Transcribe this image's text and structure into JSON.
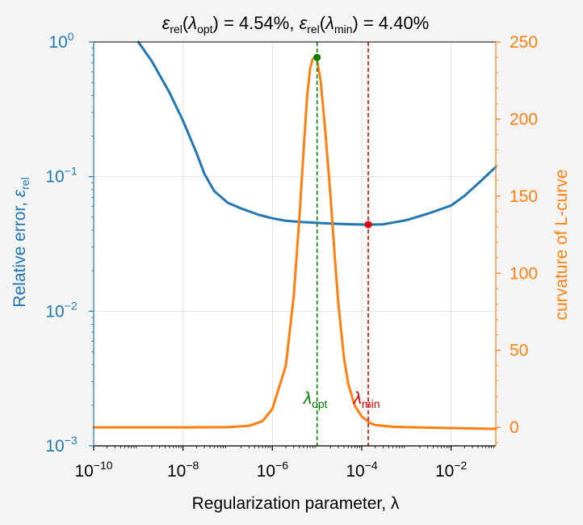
{
  "chart_data": {
    "type": "line",
    "title": {
      "eps_sym": "ε",
      "rel_sub": "rel",
      "lambda_sym": "λ",
      "opt_sub": "opt",
      "min_sub": "min",
      "open_paren": "(",
      "close_paren": ")",
      "eq_opt": " = 4.54%, ",
      "eq_min": " = 4.40%"
    },
    "xlabel": "Regularization parameter, λ",
    "ylabel_left": {
      "text": "Relative error, ",
      "sym": "ε",
      "sub": "rel"
    },
    "ylabel_right": "curvature of L-curve",
    "x_scale": "log",
    "y_left_scale": "log",
    "xlim": [
      1e-10,
      0.1
    ],
    "ylim_left": [
      0.001,
      1
    ],
    "ylim_right": [
      -12,
      250
    ],
    "grid": true,
    "x_ticks": [
      {
        "value": 1e-10,
        "base": "10",
        "exp": "−10"
      },
      {
        "value": 1e-08,
        "base": "10",
        "exp": "−8"
      },
      {
        "value": 1e-06,
        "base": "10",
        "exp": "−6"
      },
      {
        "value": 0.0001,
        "base": "10",
        "exp": "−4"
      },
      {
        "value": 0.01,
        "base": "10",
        "exp": "−2"
      }
    ],
    "y_left_ticks": [
      {
        "value": 1,
        "base": "10",
        "exp": "0"
      },
      {
        "value": 0.1,
        "base": "10",
        "exp": "−1"
      },
      {
        "value": 0.01,
        "base": "10",
        "exp": "−2"
      },
      {
        "value": 0.001,
        "base": "10",
        "exp": "−3"
      }
    ],
    "y_right_ticks": [
      {
        "value": 0,
        "label": "0"
      },
      {
        "value": 50,
        "label": "50"
      },
      {
        "value": 100,
        "label": "100"
      },
      {
        "value": 150,
        "label": "150"
      },
      {
        "value": 200,
        "label": "200"
      },
      {
        "value": 250,
        "label": "250"
      }
    ],
    "series": [
      {
        "axis": "left",
        "color": "#1f77b4",
        "points": [
          [
            1e-09,
            1.0
          ],
          [
            2e-09,
            0.72
          ],
          [
            5e-09,
            0.42
          ],
          [
            1e-08,
            0.26
          ],
          [
            2e-08,
            0.15
          ],
          [
            3e-08,
            0.105
          ],
          [
            5e-08,
            0.078
          ],
          [
            1e-07,
            0.064
          ],
          [
            2e-07,
            0.058
          ],
          [
            5e-07,
            0.052
          ],
          [
            1e-06,
            0.049
          ],
          [
            2e-06,
            0.047
          ],
          [
            5e-06,
            0.0459
          ],
          [
            1e-05,
            0.0454
          ],
          [
            2e-05,
            0.0448
          ],
          [
            5e-05,
            0.0443
          ],
          [
            0.00014,
            0.044
          ],
          [
            0.0003,
            0.0442
          ],
          [
            0.001,
            0.0475
          ],
          [
            0.003,
            0.053
          ],
          [
            0.01,
            0.061
          ],
          [
            0.02,
            0.072
          ],
          [
            0.05,
            0.095
          ],
          [
            0.1,
            0.118
          ]
        ]
      },
      {
        "axis": "right",
        "color": "#ff7f0e",
        "points": [
          [
            1e-10,
            0
          ],
          [
            1e-08,
            0
          ],
          [
            1e-07,
            0.1
          ],
          [
            3e-07,
            1
          ],
          [
            6e-07,
            4
          ],
          [
            1e-06,
            12
          ],
          [
            2e-06,
            40
          ],
          [
            3e-06,
            85
          ],
          [
            4e-06,
            135
          ],
          [
            5e-06,
            180
          ],
          [
            6e-06,
            215
          ],
          [
            7e-06,
            233
          ],
          [
            8e-06,
            239
          ],
          [
            9e-06,
            240
          ],
          [
            1e-05,
            238
          ],
          [
            1.2e-05,
            225
          ],
          [
            1.5e-05,
            195
          ],
          [
            2e-05,
            150
          ],
          [
            2.5e-05,
            110
          ],
          [
            3e-05,
            80
          ],
          [
            4e-05,
            45
          ],
          [
            5e-05,
            28
          ],
          [
            7e-05,
            14
          ],
          [
            0.0001,
            7
          ],
          [
            0.00015,
            3
          ],
          [
            0.0002,
            1.5
          ],
          [
            0.0005,
            0.4
          ],
          [
            0.001,
            0.1
          ],
          [
            0.1,
            -1
          ]
        ]
      }
    ],
    "markers": [
      {
        "x": 1e-05,
        "y": 240,
        "axis": "right",
        "color": "#008000"
      },
      {
        "x": 0.00014,
        "y": 0.044,
        "axis": "left",
        "color": "#e00000"
      }
    ],
    "vlines": [
      {
        "x": 1e-05,
        "color": "#008000",
        "style": "dashed",
        "label_sym": "λ",
        "label_sub": "opt"
      },
      {
        "x": 0.00014,
        "color": "#e00000",
        "style": "dashed",
        "label_sym": "λ",
        "label_sub": "min"
      }
    ],
    "colors": {
      "left_axis": "#1f77b4",
      "right_axis": "#ff7f0e",
      "opt": "#008000",
      "min": "#e00000"
    }
  }
}
